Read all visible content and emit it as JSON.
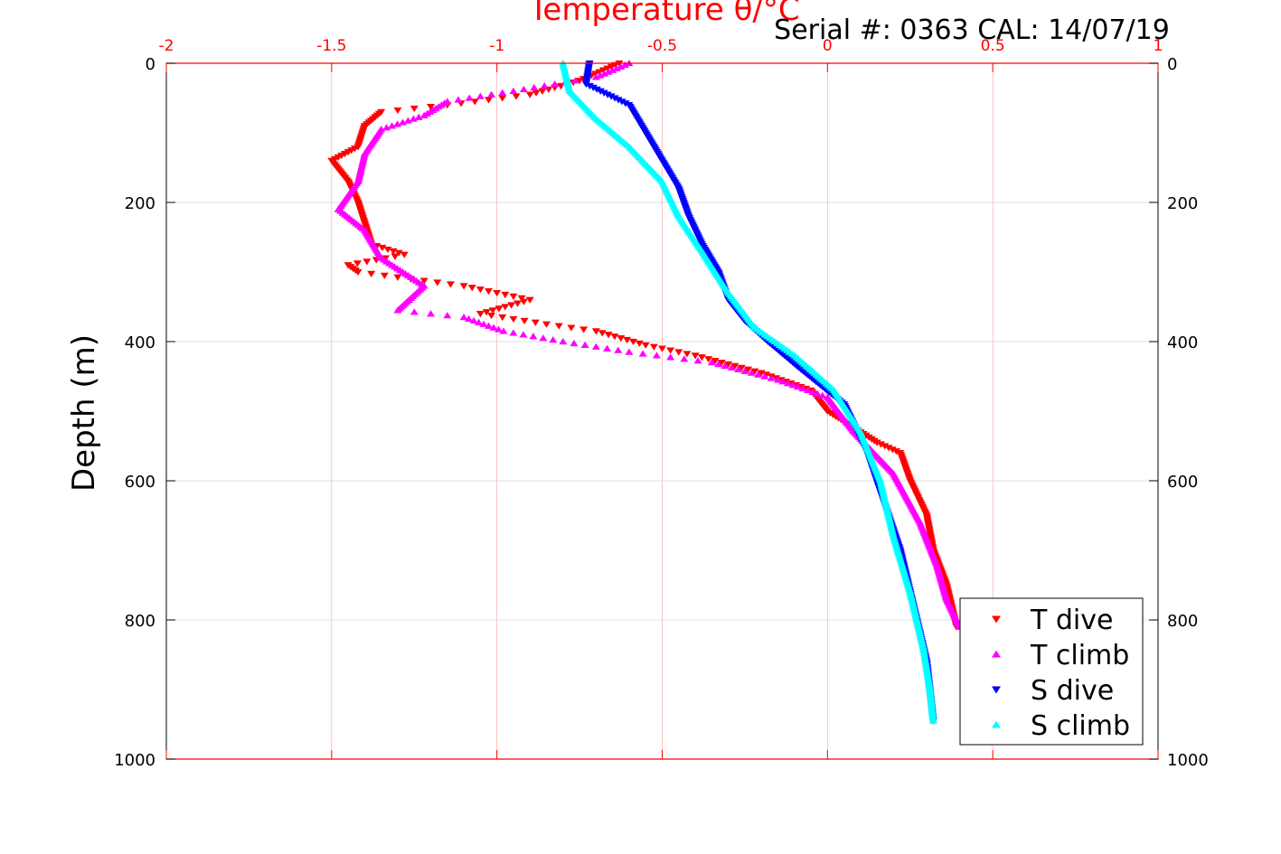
{
  "header": {
    "serial_text": "Serial #: 0363  CAL: 14/07/19"
  },
  "chart_data": {
    "type": "scatter",
    "title": "",
    "xlabel": "Temperature θ/°C",
    "ylabel": "Depth (m)",
    "xlim": [
      -2,
      1
    ],
    "ylim": [
      0,
      1000
    ],
    "y_inverted": true,
    "x_axis_position": "top",
    "x_tick_labels": [
      "-2",
      "-1.5",
      "-1",
      "-0.5",
      "0",
      "0.5",
      "1"
    ],
    "x_ticks": [
      -2,
      -1.5,
      -1,
      -0.5,
      0,
      0.5,
      1
    ],
    "y_tick_labels": [
      "0",
      "200",
      "400",
      "600",
      "800",
      "1000"
    ],
    "y_ticks": [
      0,
      200,
      400,
      600,
      800,
      1000
    ],
    "grid": true,
    "legend_position": "bottom-right",
    "series": [
      {
        "name": "T dive",
        "color": "#ff0000",
        "marker": "triangle-down",
        "points": [
          [
            -0.63,
            0
          ],
          [
            -0.75,
            25
          ],
          [
            -0.9,
            45
          ],
          [
            -1.15,
            60
          ],
          [
            -1.35,
            70
          ],
          [
            -1.4,
            90
          ],
          [
            -1.42,
            120
          ],
          [
            -1.5,
            140
          ],
          [
            -1.45,
            170
          ],
          [
            -1.42,
            200
          ],
          [
            -1.4,
            230
          ],
          [
            -1.38,
            260
          ],
          [
            -1.28,
            275
          ],
          [
            -1.45,
            290
          ],
          [
            -1.42,
            300
          ],
          [
            -1.1,
            320
          ],
          [
            -0.9,
            340
          ],
          [
            -1.05,
            360
          ],
          [
            -0.85,
            375
          ],
          [
            -0.7,
            385
          ],
          [
            -0.55,
            405
          ],
          [
            -0.4,
            420
          ],
          [
            -0.2,
            445
          ],
          [
            -0.05,
            470
          ],
          [
            0.0,
            500
          ],
          [
            0.15,
            545
          ],
          [
            0.22,
            560
          ],
          [
            0.25,
            600
          ],
          [
            0.3,
            650
          ],
          [
            0.32,
            700
          ],
          [
            0.36,
            750
          ],
          [
            0.38,
            790
          ],
          [
            0.39,
            810
          ]
        ]
      },
      {
        "name": "T climb",
        "color": "#ff00ff",
        "marker": "triangle-up",
        "points": [
          [
            -0.6,
            0
          ],
          [
            -0.7,
            20
          ],
          [
            -0.95,
            40
          ],
          [
            -1.15,
            55
          ],
          [
            -1.22,
            75
          ],
          [
            -1.35,
            95
          ],
          [
            -1.4,
            130
          ],
          [
            -1.42,
            170
          ],
          [
            -1.48,
            210
          ],
          [
            -1.4,
            240
          ],
          [
            -1.35,
            280
          ],
          [
            -1.22,
            320
          ],
          [
            -1.3,
            355
          ],
          [
            -1.1,
            365
          ],
          [
            -0.98,
            385
          ],
          [
            -0.8,
            400
          ],
          [
            -0.6,
            415
          ],
          [
            -0.35,
            430
          ],
          [
            -0.15,
            455
          ],
          [
            0.0,
            480
          ],
          [
            0.08,
            530
          ],
          [
            0.2,
            590
          ],
          [
            0.28,
            660
          ],
          [
            0.33,
            720
          ],
          [
            0.36,
            770
          ],
          [
            0.4,
            810
          ]
        ]
      },
      {
        "name": "S dive",
        "color": "#0000ff",
        "marker": "triangle-down",
        "points": [
          [
            -0.72,
            0
          ],
          [
            -0.73,
            30
          ],
          [
            -0.6,
            60
          ],
          [
            -0.55,
            100
          ],
          [
            -0.5,
            140
          ],
          [
            -0.45,
            180
          ],
          [
            -0.42,
            220
          ],
          [
            -0.38,
            260
          ],
          [
            -0.33,
            300
          ],
          [
            -0.3,
            340
          ],
          [
            -0.25,
            370
          ],
          [
            -0.18,
            400
          ],
          [
            -0.08,
            440
          ],
          [
            0.05,
            490
          ],
          [
            0.12,
            560
          ],
          [
            0.17,
            630
          ],
          [
            0.22,
            700
          ],
          [
            0.26,
            780
          ],
          [
            0.3,
            860
          ],
          [
            0.32,
            945
          ]
        ]
      },
      {
        "name": "S climb",
        "color": "#00ffff",
        "marker": "triangle-up",
        "points": [
          [
            -0.8,
            0
          ],
          [
            -0.78,
            40
          ],
          [
            -0.7,
            80
          ],
          [
            -0.6,
            120
          ],
          [
            -0.5,
            170
          ],
          [
            -0.45,
            220
          ],
          [
            -0.38,
            270
          ],
          [
            -0.3,
            330
          ],
          [
            -0.22,
            380
          ],
          [
            -0.1,
            420
          ],
          [
            0.02,
            470
          ],
          [
            0.1,
            530
          ],
          [
            0.16,
            600
          ],
          [
            0.2,
            680
          ],
          [
            0.25,
            760
          ],
          [
            0.29,
            840
          ],
          [
            0.31,
            900
          ],
          [
            0.32,
            945
          ]
        ]
      }
    ]
  }
}
